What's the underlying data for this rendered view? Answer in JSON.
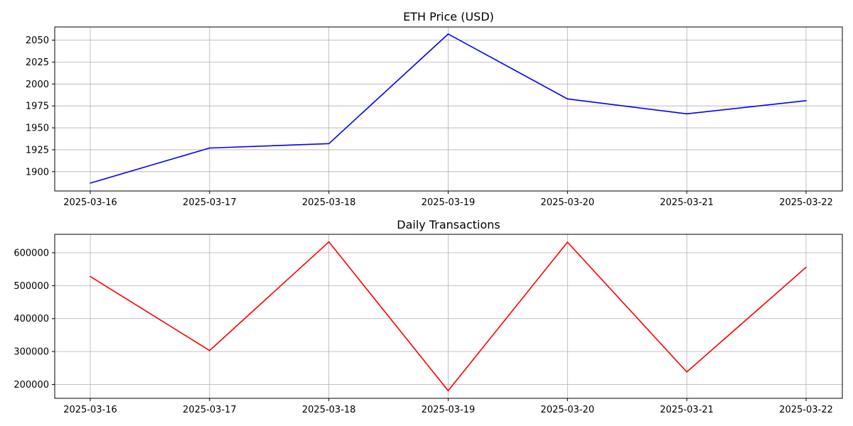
{
  "chart_data": [
    {
      "type": "line",
      "title": "ETH Price (USD)",
      "xlabel": "",
      "ylabel": "",
      "x": [
        "2025-03-16",
        "2025-03-17",
        "2025-03-18",
        "2025-03-19",
        "2025-03-20",
        "2025-03-21",
        "2025-03-22"
      ],
      "series": [
        {
          "values": [
            1887,
            1927,
            1932,
            2057,
            1983,
            1966,
            1981
          ],
          "color": "#0000ff"
        }
      ],
      "ylim": [
        1878,
        2065
      ],
      "yticks": [
        1900,
        1925,
        1950,
        1975,
        2000,
        2025,
        2050
      ],
      "grid": true
    },
    {
      "type": "line",
      "title": "Daily Transactions",
      "xlabel": "",
      "ylabel": "",
      "x": [
        "2025-03-16",
        "2025-03-17",
        "2025-03-18",
        "2025-03-19",
        "2025-03-20",
        "2025-03-21",
        "2025-03-22"
      ],
      "series": [
        {
          "values": [
            528000,
            303000,
            633000,
            181000,
            632000,
            238000,
            556000
          ],
          "color": "#ff0000"
        }
      ],
      "ylim": [
        158000,
        656000
      ],
      "yticks": [
        200000,
        300000,
        400000,
        500000,
        600000
      ],
      "grid": true
    }
  ]
}
